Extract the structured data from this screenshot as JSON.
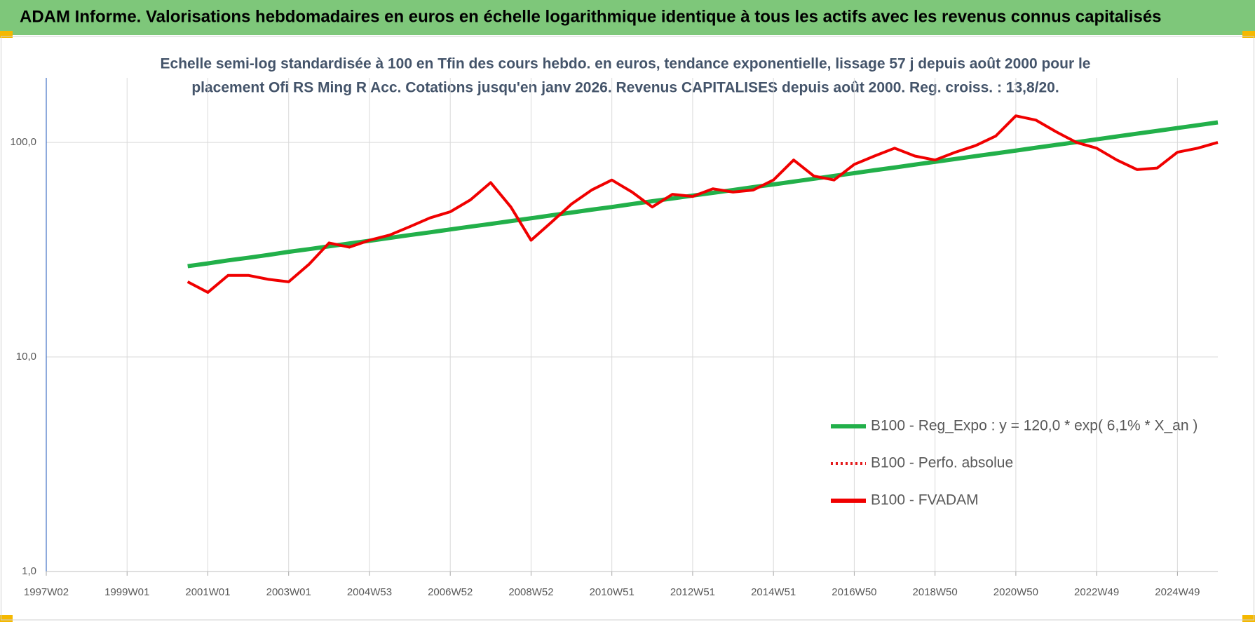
{
  "heading": "ADAM Informe. Valorisations hebdomadaires en euros en échelle logarithmique identique à tous les actifs avec les revenus connus capitalisés",
  "chart_data": {
    "type": "line",
    "title": [
      "Echelle semi-log standardisée à 100 en Tfin des cours hebdo. en euros, tendance exponentielle, lissage 57 j depuis août 2000 pour le",
      "placement Ofi RS Ming R Acc. Cotations jusqu'en janv 2026. Revenus CAPITALISES depuis août 2000. Reg. croiss. : 13,8/20."
    ],
    "log_scale": true,
    "grid": true,
    "legend": "lower right",
    "ylim": [
      1,
      200
    ],
    "yticks": [
      {
        "value": 1,
        "label": "1,0"
      },
      {
        "value": 10,
        "label": "10,0"
      },
      {
        "value": 100,
        "label": "100,0"
      }
    ],
    "categories": [
      "1997W02",
      null,
      null,
      null,
      "1999W01",
      null,
      null,
      null,
      "2001W01",
      null,
      null,
      null,
      "2003W01",
      null,
      null,
      null,
      "2004W53",
      null,
      null,
      null,
      "2006W52",
      null,
      null,
      null,
      "2008W52",
      null,
      null,
      null,
      "2010W51",
      null,
      null,
      null,
      "2012W51",
      null,
      null,
      null,
      "2014W51",
      null,
      null,
      null,
      "2016W50",
      null,
      null,
      null,
      "2018W50",
      null,
      null,
      null,
      "2020W50",
      null,
      null,
      null,
      "2022W49",
      null,
      null,
      null,
      "2024W49",
      null,
      null
    ],
    "series": [
      {
        "name": "B100 - Reg_Expo : y = 120,0 * exp( 6,1% *  X_an )",
        "color": "#22b04a",
        "style": "solid",
        "width": 6,
        "values": [
          null,
          null,
          null,
          null,
          null,
          null,
          null,
          26.5,
          27.3,
          28.2,
          29.0,
          29.9,
          30.9,
          31.8,
          32.8,
          33.8,
          34.8,
          35.9,
          37.0,
          38.1,
          39.3,
          40.5,
          41.7,
          43.0,
          44.3,
          45.7,
          47.1,
          48.6,
          50.0,
          51.6,
          53.2,
          54.8,
          56.5,
          58.2,
          60.0,
          61.9,
          63.7,
          65.7,
          67.7,
          69.8,
          71.9,
          74.2,
          76.4,
          78.8,
          81.2,
          83.7,
          86.3,
          88.9,
          91.6,
          94.5,
          97.4,
          100.3,
          103.4,
          106.6,
          109.9,
          113.2,
          116.7,
          120.3,
          124
        ]
      },
      {
        "name": "B100 - Perfo. absolue",
        "color": "#e31a1c",
        "style": "dotted",
        "width": 3,
        "values": [
          null,
          null,
          null,
          null,
          null,
          null,
          null,
          22.4,
          20,
          24,
          24,
          23,
          22.4,
          27,
          34,
          32.5,
          35,
          37,
          40.5,
          44.5,
          47.5,
          54,
          65,
          50,
          35,
          42.4,
          51.6,
          60,
          66.8,
          58.7,
          50,
          57.3,
          56,
          60.8,
          58.7,
          60,
          66.8,
          82.8,
          69.7,
          66.8,
          79,
          86.4,
          94,
          86.4,
          82.8,
          90,
          96.6,
          107,
          133,
          127,
          112,
          100,
          94,
          82.8,
          74.7,
          76,
          90,
          94,
          100
        ]
      },
      {
        "name": "B100 - FVADAM",
        "color": "#f00000",
        "style": "solid",
        "width": 4,
        "values": [
          null,
          null,
          null,
          null,
          null,
          null,
          null,
          22.4,
          20,
          24,
          24,
          23,
          22.4,
          27,
          34,
          32.5,
          35,
          37,
          40.5,
          44.5,
          47.5,
          54,
          65,
          50,
          35,
          42.4,
          51.6,
          60,
          66.8,
          58.7,
          50,
          57.3,
          56,
          60.8,
          58.7,
          60,
          66.8,
          82.8,
          69.7,
          66.8,
          79,
          86.4,
          94,
          86.4,
          82.8,
          90,
          96.6,
          107,
          133,
          127,
          112,
          100,
          94,
          82.8,
          74.7,
          76,
          90,
          94,
          100
        ]
      }
    ]
  }
}
